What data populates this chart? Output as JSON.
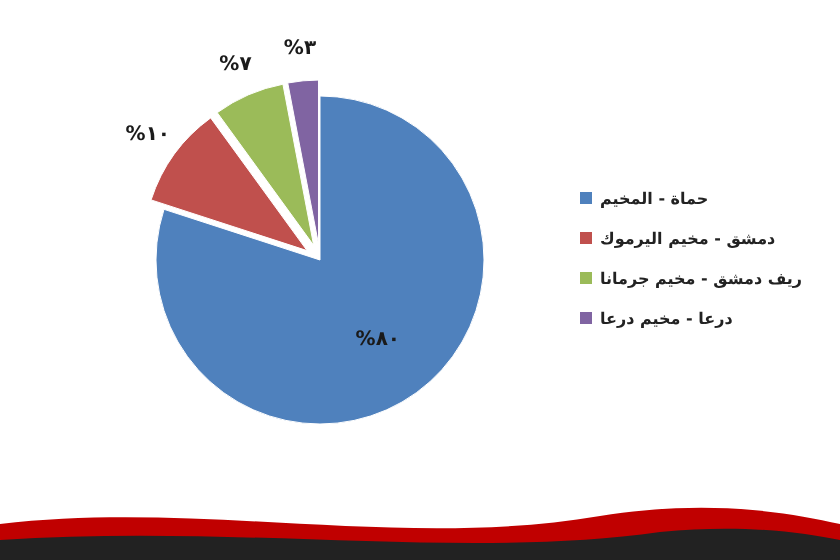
{
  "chart_data": {
    "type": "pie",
    "categories": [
      "حماة - المخيم",
      "دمشق - مخيم اليرموك",
      "ريف دمشق - مخيم جرمانا",
      "درعا - مخيم درعا"
    ],
    "values": [
      80,
      10,
      7,
      3
    ],
    "colors": [
      "#4f81bd",
      "#c0504d",
      "#9bbb59",
      "#8064a2"
    ],
    "value_labels": [
      "%٨٠",
      "%١٠",
      "%٧",
      "%٣"
    ],
    "legend": "right"
  }
}
